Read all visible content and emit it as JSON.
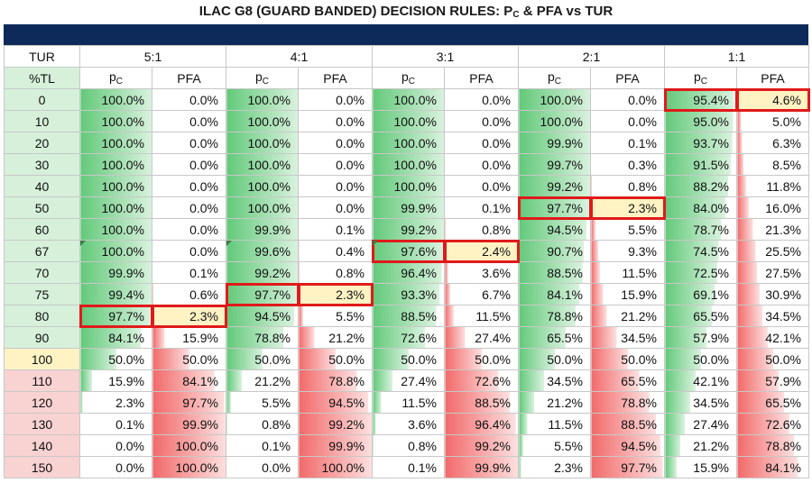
{
  "header": {
    "title_main": "ILAC G8 (GUARD BANDED) DECISION RULES: P",
    "title_sub": "C",
    "title_tail": " & PFA vs TUR"
  },
  "table": {
    "tur_label": "TUR",
    "tl_label": "%TL",
    "pc_label_main": "p",
    "pc_label_sub": "C",
    "pfa_label": "PFA",
    "colors": {
      "green": "#63c97a",
      "red": "#f26a6a",
      "mark": "#e01a1a",
      "highlight": "#fff3c4"
    }
  },
  "chart_data": {
    "type": "table",
    "title": "ILAC G8 (GUARD BANDED) DECISION RULES: PC & PFA vs TUR",
    "tur_groups": [
      "5:1",
      "4:1",
      "3:1",
      "2:1",
      "1:1"
    ],
    "tl_values": [
      "0",
      "10",
      "20",
      "30",
      "40",
      "50",
      "60",
      "67",
      "70",
      "75",
      "80",
      "90",
      "100",
      "110",
      "120",
      "130",
      "140",
      "150"
    ],
    "pc": {
      "5:1": [
        "100.0%",
        "100.0%",
        "100.0%",
        "100.0%",
        "100.0%",
        "100.0%",
        "100.0%",
        "100.0%",
        "99.9%",
        "99.4%",
        "97.7%",
        "84.1%",
        "50.0%",
        "15.9%",
        "2.3%",
        "0.1%",
        "0.0%",
        "0.0%"
      ],
      "4:1": [
        "100.0%",
        "100.0%",
        "100.0%",
        "100.0%",
        "100.0%",
        "100.0%",
        "99.9%",
        "99.6%",
        "99.2%",
        "97.7%",
        "94.5%",
        "78.8%",
        "50.0%",
        "21.2%",
        "5.5%",
        "0.8%",
        "0.1%",
        "0.0%"
      ],
      "3:1": [
        "100.0%",
        "100.0%",
        "100.0%",
        "100.0%",
        "100.0%",
        "99.9%",
        "99.2%",
        "97.6%",
        "96.4%",
        "93.3%",
        "88.5%",
        "72.6%",
        "50.0%",
        "27.4%",
        "11.5%",
        "3.6%",
        "0.8%",
        "0.1%"
      ],
      "2:1": [
        "100.0%",
        "100.0%",
        "99.9%",
        "99.7%",
        "99.2%",
        "97.7%",
        "94.5%",
        "90.7%",
        "88.5%",
        "84.1%",
        "78.8%",
        "65.5%",
        "50.0%",
        "34.5%",
        "21.2%",
        "11.5%",
        "5.5%",
        "2.3%"
      ],
      "1:1": [
        "95.4%",
        "95.0%",
        "93.7%",
        "91.5%",
        "88.2%",
        "84.0%",
        "78.7%",
        "74.5%",
        "72.5%",
        "69.1%",
        "65.5%",
        "57.9%",
        "50.0%",
        "42.1%",
        "34.5%",
        "27.4%",
        "21.2%",
        "15.9%"
      ]
    },
    "pfa": {
      "5:1": [
        "0.0%",
        "0.0%",
        "0.0%",
        "0.0%",
        "0.0%",
        "0.0%",
        "0.0%",
        "0.0%",
        "0.1%",
        "0.6%",
        "2.3%",
        "15.9%",
        "50.0%",
        "84.1%",
        "97.7%",
        "99.9%",
        "100.0%",
        "100.0%"
      ],
      "4:1": [
        "0.0%",
        "0.0%",
        "0.0%",
        "0.0%",
        "0.0%",
        "0.0%",
        "0.1%",
        "0.4%",
        "0.8%",
        "2.3%",
        "5.5%",
        "21.2%",
        "50.0%",
        "78.8%",
        "94.5%",
        "99.2%",
        "99.9%",
        "100.0%"
      ],
      "3:1": [
        "0.0%",
        "0.0%",
        "0.0%",
        "0.0%",
        "0.0%",
        "0.1%",
        "0.8%",
        "2.4%",
        "3.6%",
        "6.7%",
        "11.5%",
        "27.4%",
        "50.0%",
        "72.6%",
        "88.5%",
        "96.4%",
        "99.2%",
        "99.9%"
      ],
      "2:1": [
        "0.0%",
        "0.0%",
        "0.1%",
        "0.3%",
        "0.8%",
        "2.3%",
        "5.5%",
        "9.3%",
        "11.5%",
        "15.9%",
        "21.2%",
        "34.5%",
        "50.0%",
        "65.5%",
        "78.8%",
        "88.5%",
        "94.5%",
        "97.7%"
      ],
      "1:1": [
        "4.6%",
        "5.0%",
        "6.3%",
        "8.5%",
        "11.8%",
        "16.0%",
        "21.3%",
        "25.5%",
        "27.5%",
        "30.9%",
        "34.5%",
        "42.1%",
        "50.0%",
        "57.9%",
        "65.5%",
        "72.6%",
        "78.8%",
        "84.1%"
      ]
    },
    "highlighted_rows": {
      "5:1": "80",
      "4:1": "75",
      "3:1": "67",
      "2:1": "50",
      "1:1": "0"
    }
  }
}
